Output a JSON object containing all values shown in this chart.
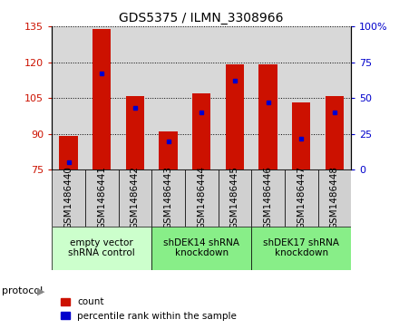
{
  "title": "GDS5375 / ILMN_3308966",
  "samples": [
    "GSM1486440",
    "GSM1486441",
    "GSM1486442",
    "GSM1486443",
    "GSM1486444",
    "GSM1486445",
    "GSM1486446",
    "GSM1486447",
    "GSM1486448"
  ],
  "count_values": [
    89,
    134,
    106,
    91,
    107,
    119,
    119,
    103,
    106
  ],
  "count_base": 75,
  "percentile_values": [
    5,
    67,
    43,
    20,
    40,
    62,
    47,
    22,
    40
  ],
  "ylim_left": [
    75,
    135
  ],
  "ylim_right": [
    0,
    100
  ],
  "yticks_left": [
    75,
    90,
    105,
    120,
    135
  ],
  "yticks_right": [
    0,
    25,
    50,
    75,
    100
  ],
  "groups": [
    {
      "label": "empty vector\nshRNA control",
      "start": 0,
      "end": 3,
      "color": "#ccffcc"
    },
    {
      "label": "shDEK14 shRNA\nknockdown",
      "start": 3,
      "end": 6,
      "color": "#88ee88"
    },
    {
      "label": "shDEK17 shRNA\nknockdown",
      "start": 6,
      "end": 9,
      "color": "#88ee88"
    }
  ],
  "bar_color": "#cc1100",
  "percentile_color": "#0000cc",
  "bar_width": 0.55,
  "background_color": "#d8d8d8",
  "label_bg_color": "#d0d0d0",
  "protocol_label": "protocol",
  "legend_count_label": "count",
  "legend_percentile_label": "percentile rank within the sample",
  "title_fontsize": 10,
  "tick_fontsize": 8,
  "label_fontsize": 7.5,
  "group_fontsize": 7.5,
  "legend_fontsize": 7.5
}
